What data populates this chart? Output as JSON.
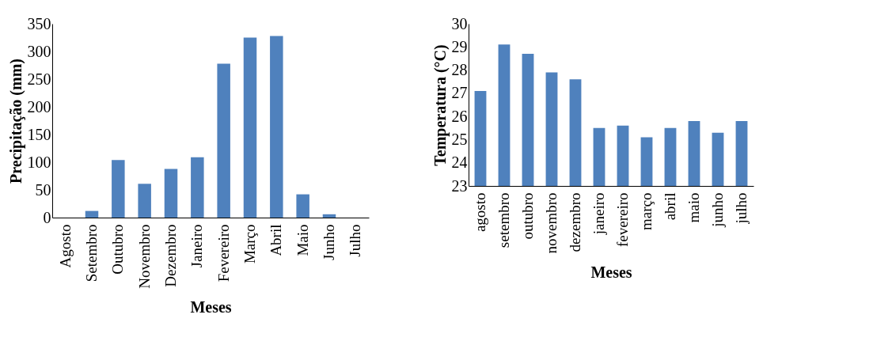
{
  "chart_data": [
    {
      "type": "bar",
      "categories": [
        "Agosto",
        "Setembro",
        "Outubro",
        "Novembro",
        "Dezembro",
        "Janeiro",
        "Fevereiro",
        "Março",
        "Abril",
        "Maio",
        "Junho",
        "Julho"
      ],
      "values": [
        0,
        12,
        104,
        61,
        88,
        109,
        278,
        325,
        328,
        42,
        6,
        0
      ],
      "color": "#4f81bd",
      "xlabel": "Meses",
      "ylabel": "Precipitação (mm)",
      "ylim": [
        0,
        350
      ],
      "yticks": [
        0,
        50,
        100,
        150,
        200,
        250,
        300,
        350
      ],
      "grid": false
    },
    {
      "type": "bar",
      "categories": [
        "agosto",
        "setembro",
        "outubro",
        "novembro",
        "dezembro",
        "janeiro",
        "fevereiro",
        "março",
        "abril",
        "maio",
        "junho",
        "julho"
      ],
      "values": [
        27.1,
        29.1,
        28.7,
        27.9,
        27.6,
        25.5,
        25.6,
        25.1,
        25.5,
        25.8,
        25.3,
        25.8
      ],
      "color": "#4f81bd",
      "xlabel": "Meses",
      "ylabel": "Temperatura (°C)",
      "ylim": [
        23,
        30
      ],
      "yticks": [
        23,
        24,
        25,
        26,
        27,
        28,
        29,
        30
      ],
      "grid": false
    }
  ]
}
